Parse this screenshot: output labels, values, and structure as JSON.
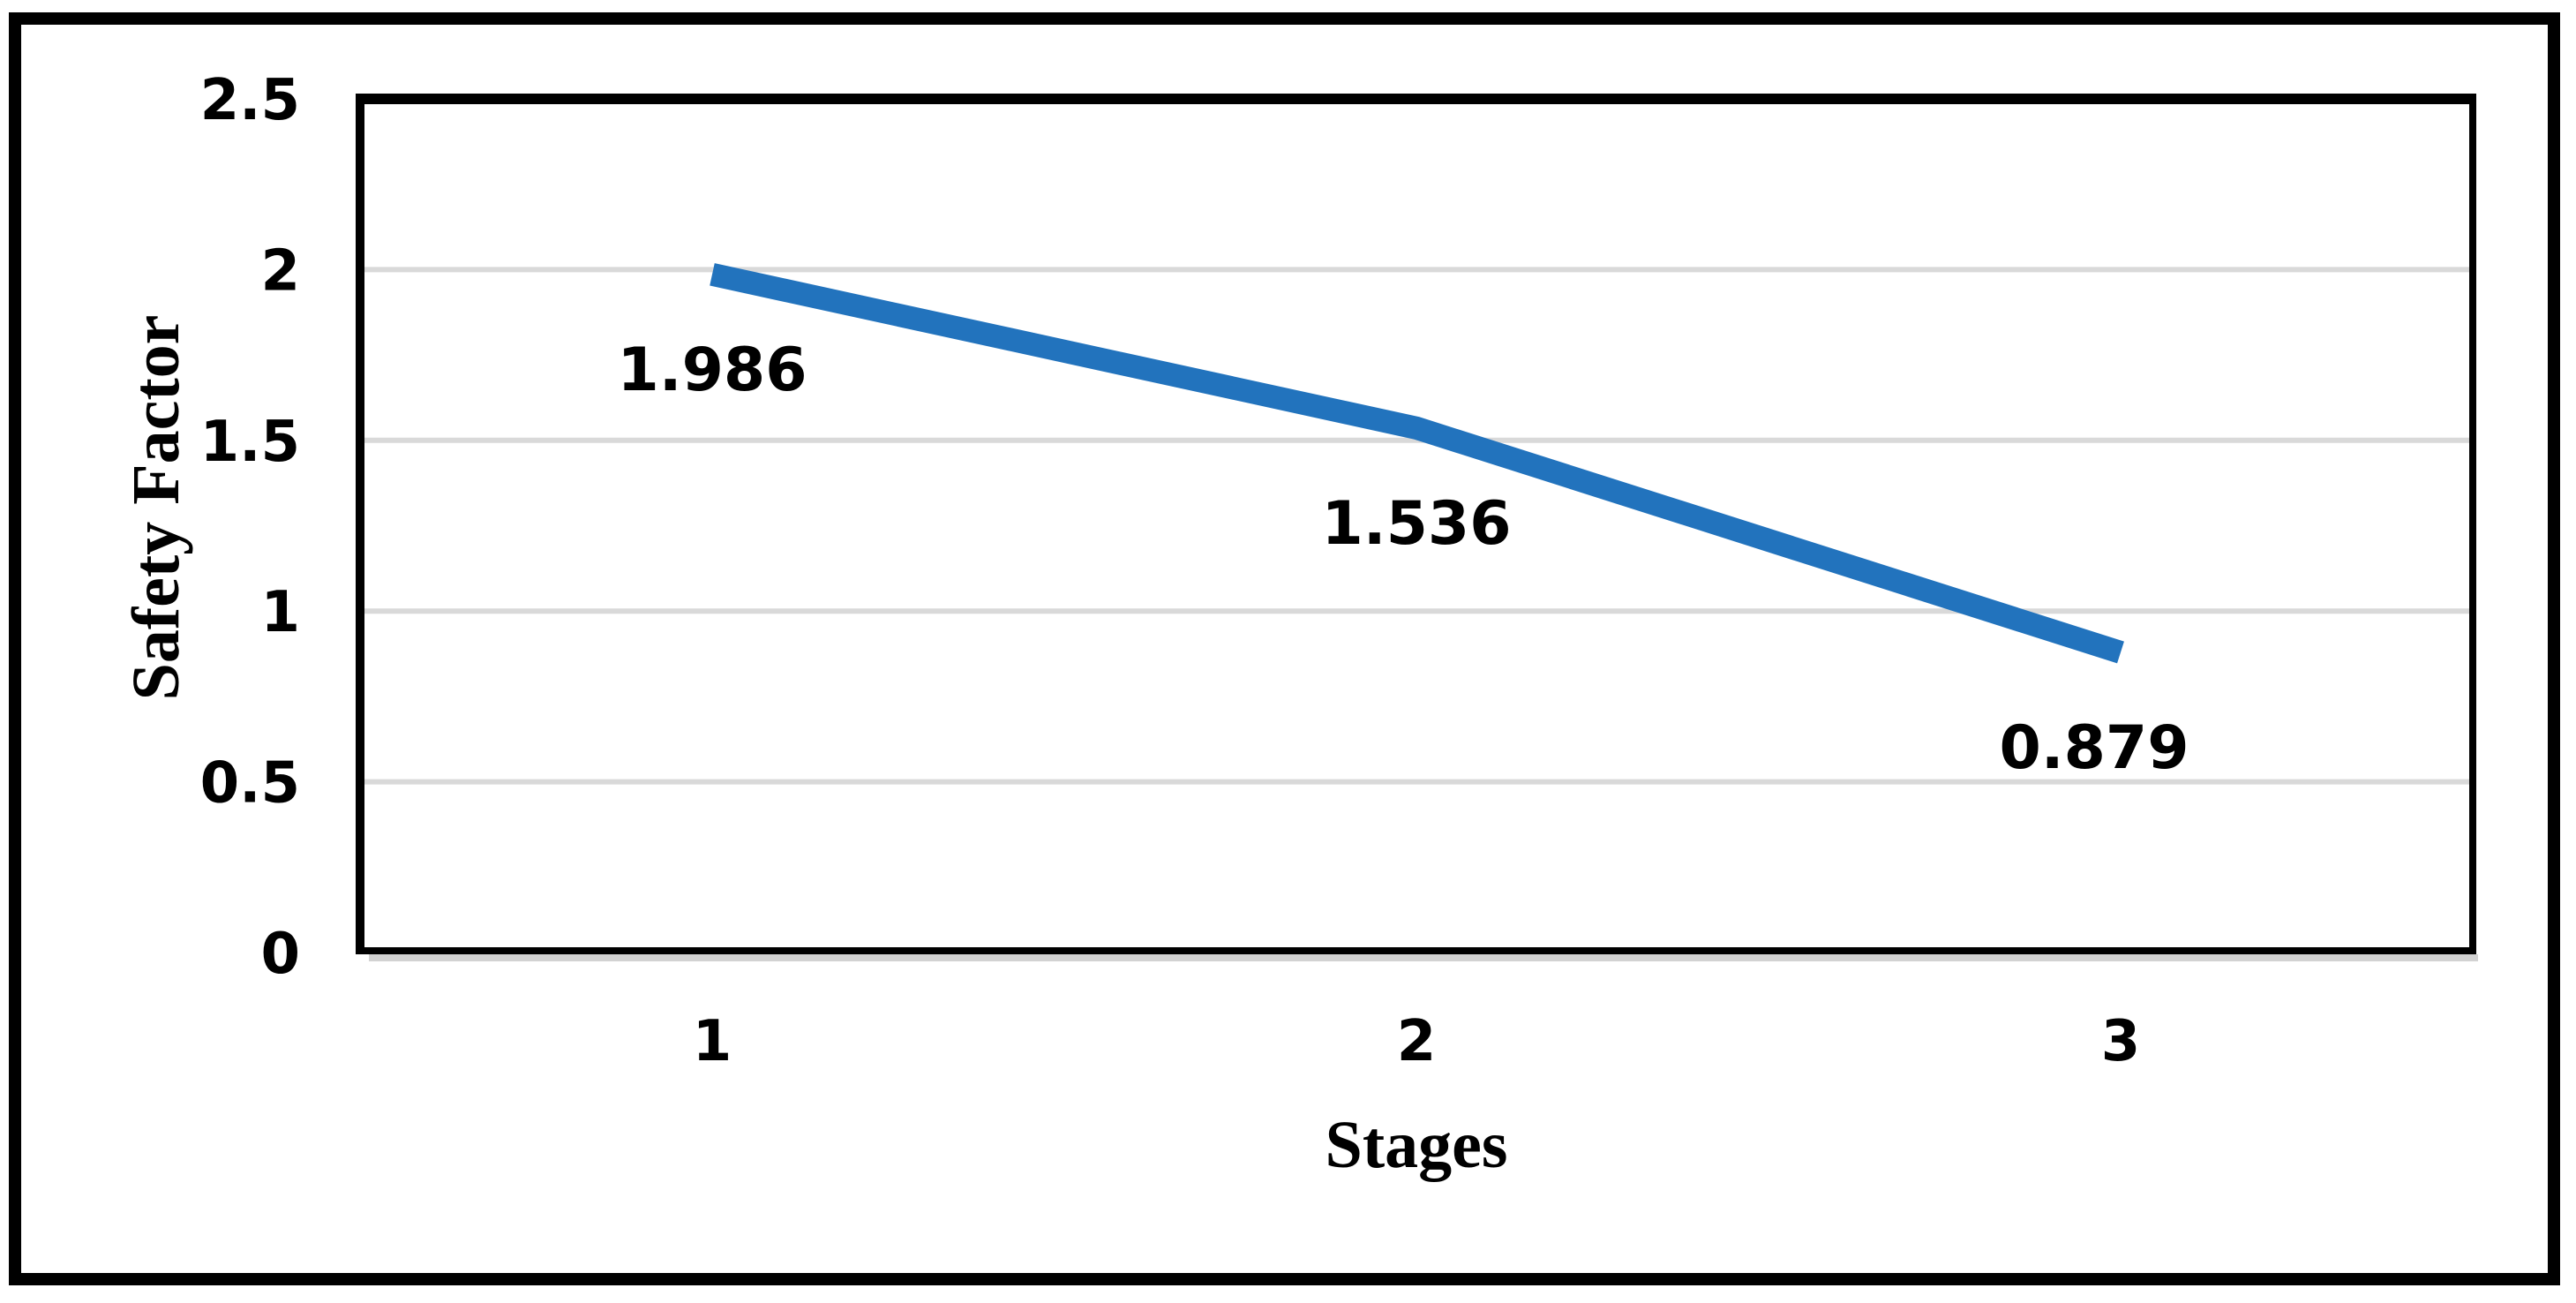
{
  "figure": {
    "background_color": "#ffffff",
    "border_color": "#000000"
  },
  "chart_data": {
    "type": "line",
    "title": "",
    "xlabel": "Stages",
    "ylabel": "Safety Factor",
    "categories": [
      "1",
      "2",
      "3"
    ],
    "series": [
      {
        "name": "Safety Factor",
        "values": [
          1.986,
          1.536,
          0.879
        ]
      }
    ],
    "data_labels": [
      "1.986",
      "1.536",
      "0.879"
    ],
    "data_label_position": "below",
    "y_ticks": [
      {
        "label": "2.5",
        "value": 2.5
      },
      {
        "label": "2",
        "value": 2.0
      },
      {
        "label": "1.5",
        "value": 1.5
      },
      {
        "label": "1",
        "value": 1.0
      },
      {
        "label": "0.5",
        "value": 0.5
      },
      {
        "label": "0",
        "value": 0.0
      }
    ],
    "ylim": [
      0,
      2.5
    ],
    "gridline_values": [
      2.0,
      1.5,
      1.0,
      0.5
    ],
    "grid": "horizontal",
    "legend": "none",
    "colors": {
      "line": "#2273BD",
      "gridline": "#D9D9D9",
      "axis": "#000000",
      "axis_shadow": "#D2D2D2",
      "text": "#000000"
    }
  }
}
